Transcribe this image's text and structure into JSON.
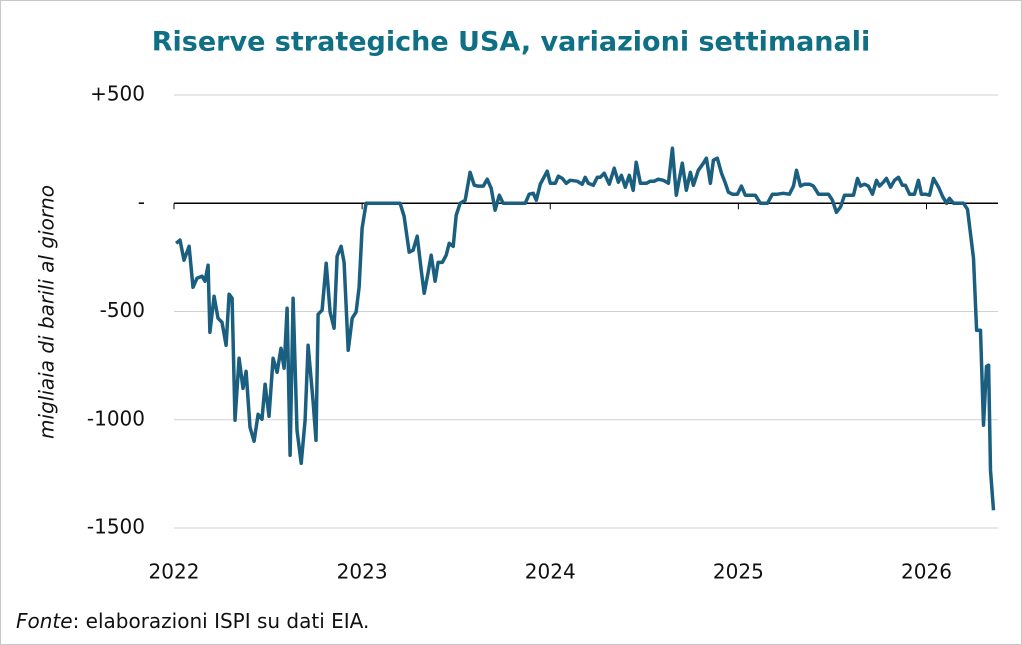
{
  "chart_data": {
    "type": "line",
    "title": "Riserve strategiche USA, variazioni settimanali",
    "y_label": "migliaia di barili al giorno",
    "source_label": "Fonte",
    "source_text": ": elaborazioni ISPI su dati EIA.",
    "color": "#1b5f80",
    "grid": true,
    "xlim": [
      2022,
      2026.38
    ],
    "xticks": [
      2022,
      2023,
      2024,
      2025,
      2026
    ],
    "ylim": [
      -1500,
      500
    ],
    "yticks": [
      {
        "value": 500,
        "label": "+500"
      },
      {
        "value": 0,
        "label": "-"
      },
      -500,
      -1000,
      -1500
    ],
    "x": [
      2022.011,
      2022.032,
      2022.053,
      2022.08,
      2022.101,
      2022.122,
      2022.149,
      2022.165,
      2022.181,
      2022.191,
      2022.213,
      2022.234,
      2022.255,
      2022.277,
      2022.293,
      2022.309,
      2022.324,
      2022.346,
      2022.367,
      2022.383,
      2022.404,
      2022.426,
      2022.447,
      2022.468,
      2022.484,
      2022.505,
      2022.527,
      2022.548,
      2022.569,
      2022.585,
      2022.601,
      2022.617,
      2022.633,
      2022.654,
      2022.676,
      2022.697,
      2022.713,
      2022.739,
      2022.755,
      2022.766,
      2022.787,
      2022.809,
      2022.83,
      2022.851,
      2022.867,
      2022.888,
      2022.904,
      2022.926,
      2022.947,
      2022.968,
      2022.984,
      2023.0,
      2023.021,
      2023.202,
      2023.223,
      2023.25,
      2023.271,
      2023.293,
      2023.314,
      2023.33,
      2023.351,
      2023.367,
      2023.388,
      2023.404,
      2023.426,
      2023.447,
      2023.463,
      2023.484,
      2023.5,
      2023.521,
      2023.548,
      2023.574,
      2023.596,
      2023.617,
      2023.644,
      2023.665,
      2023.686,
      2023.707,
      2023.729,
      2023.75,
      2023.867,
      2023.888,
      2023.91,
      2023.926,
      2023.947,
      2023.984,
      2024.0,
      2024.027,
      2024.043,
      2024.064,
      2024.085,
      2024.106,
      2024.144,
      2024.17,
      2024.186,
      2024.202,
      2024.229,
      2024.25,
      2024.266,
      2024.287,
      2024.314,
      2024.34,
      2024.362,
      2024.378,
      2024.399,
      2024.42,
      2024.441,
      2024.457,
      2024.479,
      2024.511,
      2024.532,
      2024.553,
      2024.574,
      2024.601,
      2024.628,
      2024.649,
      2024.67,
      2024.702,
      2024.723,
      2024.745,
      2024.761,
      2024.787,
      2024.814,
      2024.83,
      2024.851,
      2024.867,
      2024.888,
      2024.91,
      2024.931,
      2024.947,
      2024.968,
      2024.995,
      2025.016,
      2025.037,
      2025.09,
      2025.117,
      2025.154,
      2025.181,
      2025.207,
      2025.239,
      2025.271,
      2025.293,
      2025.309,
      2025.33,
      2025.351,
      2025.378,
      2025.399,
      2025.426,
      2025.479,
      2025.5,
      2025.521,
      2025.543,
      2025.564,
      2025.612,
      2025.633,
      2025.649,
      2025.67,
      2025.691,
      2025.713,
      2025.734,
      2025.75,
      2025.771,
      2025.787,
      2025.809,
      2025.83,
      2025.851,
      2025.872,
      2025.888,
      2025.91,
      2025.936,
      2025.957,
      2025.973,
      2025.995,
      2026.016,
      2026.037,
      2026.064,
      2026.085,
      2026.106,
      2026.122,
      2026.144,
      2026.197,
      2026.218,
      2026.25,
      2026.266,
      2026.287,
      2026.303,
      2026.319,
      2026.33,
      2026.34,
      2026.356
    ],
    "values": [
      -185,
      -170,
      -263,
      -199,
      -388,
      -346,
      -337,
      -360,
      -286,
      -596,
      -430,
      -531,
      -550,
      -656,
      -420,
      -439,
      -1002,
      -716,
      -855,
      -776,
      -1035,
      -1099,
      -975,
      -998,
      -836,
      -984,
      -716,
      -781,
      -670,
      -762,
      -485,
      -1164,
      -439,
      -1048,
      -1201,
      -1002,
      -656,
      -910,
      -1095,
      -513,
      -494,
      -277,
      -503,
      -577,
      -245,
      -199,
      -273,
      -679,
      -531,
      -503,
      -388,
      -115,
      0,
      0,
      -60,
      -226,
      -217,
      -152,
      -309,
      -416,
      -319,
      -240,
      -360,
      -273,
      -273,
      -240,
      -185,
      -199,
      -55,
      0,
      14,
      143,
      83,
      79,
      79,
      111,
      69,
      -32,
      37,
      0,
      0,
      42,
      46,
      14,
      88,
      148,
      92,
      92,
      125,
      115,
      92,
      106,
      102,
      88,
      120,
      92,
      83,
      120,
      120,
      139,
      88,
      162,
      97,
      129,
      74,
      129,
      60,
      189,
      92,
      92,
      102,
      102,
      111,
      106,
      92,
      254,
      37,
      185,
      60,
      143,
      83,
      152,
      185,
      208,
      92,
      199,
      208,
      139,
      92,
      51,
      42,
      42,
      79,
      37,
      37,
      0,
      0,
      42,
      42,
      46,
      42,
      79,
      152,
      79,
      88,
      88,
      79,
      42,
      42,
      14,
      -42,
      -18,
      37,
      37,
      115,
      79,
      88,
      79,
      42,
      106,
      79,
      97,
      115,
      74,
      106,
      120,
      83,
      83,
      42,
      42,
      106,
      42,
      42,
      37,
      115,
      74,
      32,
      0,
      23,
      0,
      0,
      -28,
      -254,
      -587,
      -587,
      -1025,
      -753,
      -748,
      -1233,
      -1418
    ]
  }
}
